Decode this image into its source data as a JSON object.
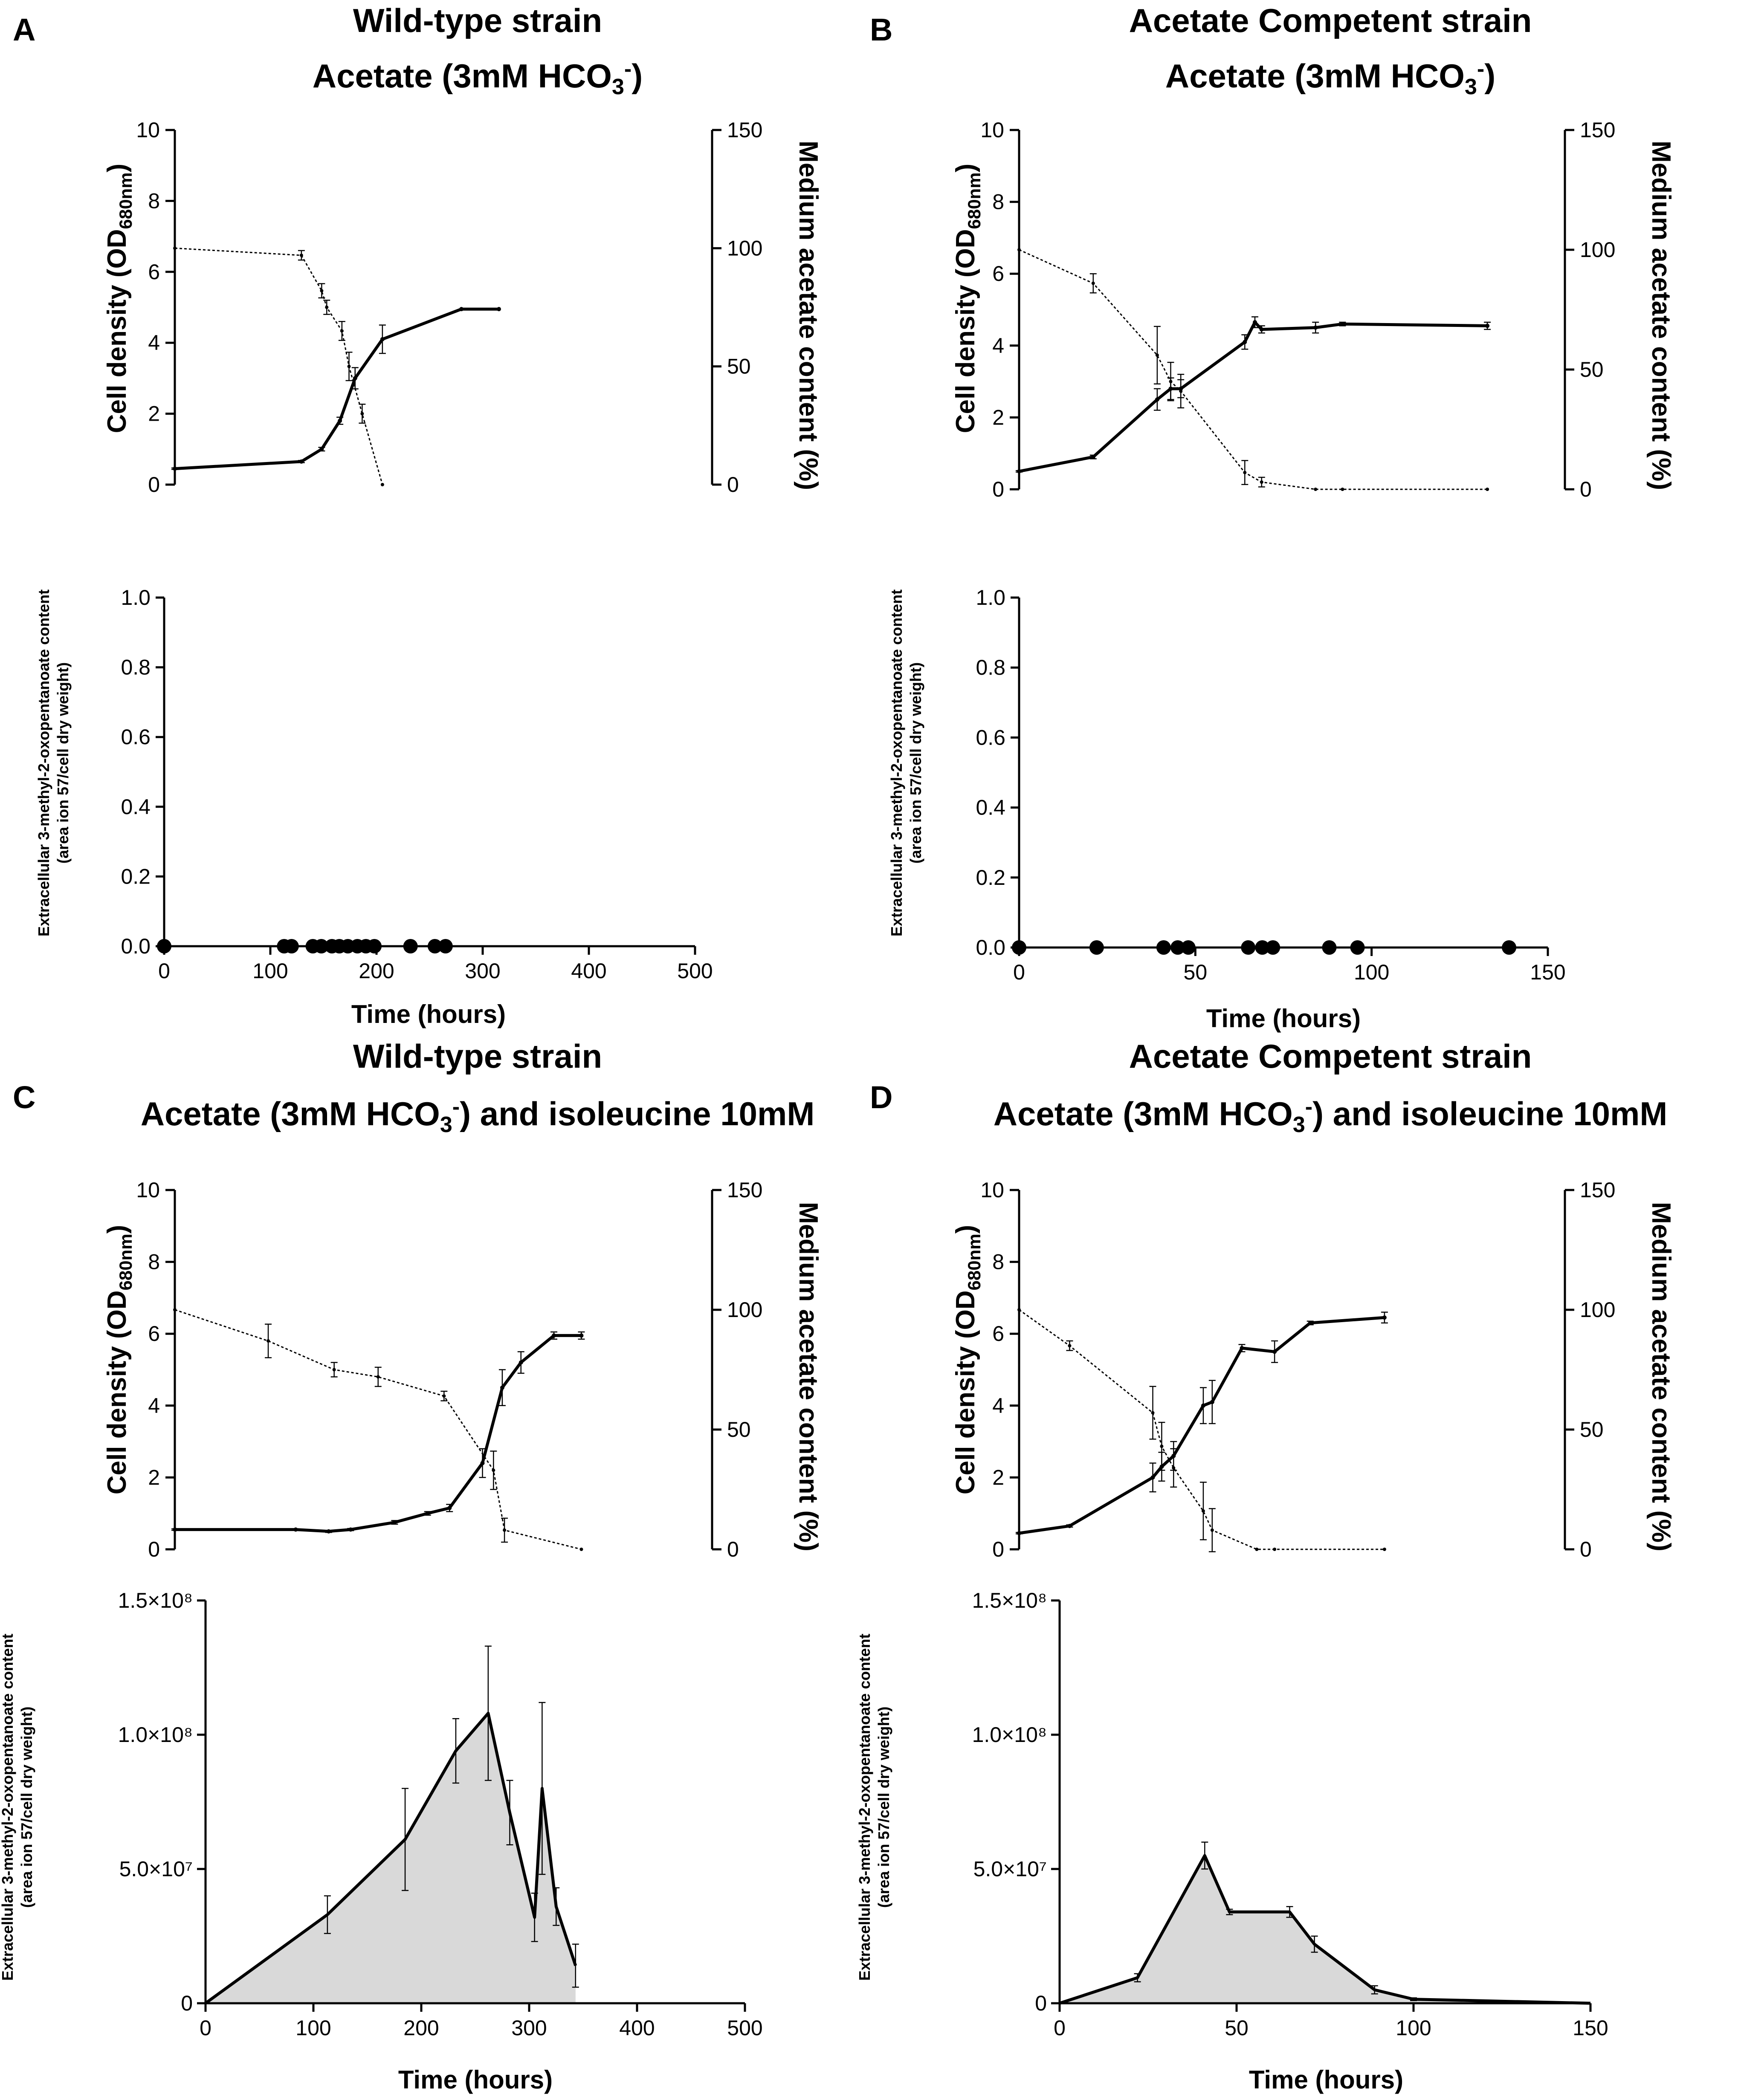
{
  "figure": {
    "panels": [
      {
        "letter": "A",
        "title_line1": "Wild-type strain",
        "title_line2": "Acetate (3mM HCO3-)"
      },
      {
        "letter": "B",
        "title_line1": "Acetate Competent strain",
        "title_line2": "Acetate (3mM HCO3-)"
      },
      {
        "letter": "C",
        "title_line1": "Wild-type strain",
        "title_line2": "Acetate (3mM HCO3-) and isoleucine 10mM"
      },
      {
        "letter": "D",
        "title_line1": "Acetate Competent strain",
        "title_line2": "Acetate (3mM HCO3-) and isoleucine 10mM"
      }
    ],
    "y_left_label": "Cell density (OD680nm)",
    "y_right_label": "Medium acetate content (%)",
    "y_metabolite_label_line1": "Extracellular 3-methyl-2-oxopentanoate content",
    "y_metabolite_label_line2": "(area ion 57/cell dry weight)",
    "x_label": "Time (hours)"
  },
  "chart_data": [
    {
      "id": "A-growth",
      "type": "line",
      "panel": "A",
      "xlim": [
        0,
        320
      ],
      "ylim_left": [
        0,
        10
      ],
      "ylim_right": [
        0,
        150
      ],
      "yticks_left": [
        0,
        2,
        4,
        6,
        8,
        10
      ],
      "yticks_right": [
        0,
        50,
        100,
        150
      ],
      "series": [
        {
          "name": "Cell density",
          "axis": "left",
          "style": "solid",
          "x": [
            0,
            125,
            145,
            163,
            178,
            205,
            283,
            320
          ],
          "y": [
            0.45,
            0.65,
            1.0,
            1.8,
            3.0,
            4.1,
            4.95,
            4.95
          ],
          "err": [
            0.02,
            0.03,
            0.05,
            0.1,
            0.3,
            0.4,
            0,
            0
          ]
        },
        {
          "name": "Medium acetate",
          "axis": "right",
          "style": "dotted",
          "x": [
            0,
            125,
            145,
            150,
            165,
            172,
            185,
            205
          ],
          "y": [
            100,
            97,
            82,
            75,
            65,
            50,
            30,
            0
          ],
          "err": [
            0,
            2,
            3,
            3,
            4,
            6,
            4,
            0
          ]
        }
      ]
    },
    {
      "id": "B-growth",
      "type": "line",
      "panel": "B",
      "xlim": [
        0,
        150
      ],
      "ylim_left": [
        0,
        10
      ],
      "ylim_right": [
        0,
        150
      ],
      "yticks_left": [
        0,
        2,
        4,
        6,
        8,
        10
      ],
      "yticks_right": [
        0,
        50,
        100,
        150
      ],
      "series": [
        {
          "name": "Cell density",
          "axis": "left",
          "style": "solid",
          "x": [
            0,
            22,
            41,
            45,
            48,
            67,
            70,
            72,
            88,
            96,
            139
          ],
          "y": [
            0.5,
            0.9,
            2.5,
            2.8,
            2.8,
            4.1,
            4.65,
            4.45,
            4.5,
            4.6,
            4.55
          ],
          "err": [
            0.02,
            0.05,
            0.3,
            0.3,
            0.25,
            0.2,
            0.15,
            0.1,
            0.15,
            0.05,
            0.1
          ]
        },
        {
          "name": "Medium acetate",
          "axis": "right",
          "style": "dotted",
          "x": [
            0,
            22,
            41,
            45,
            48,
            67,
            72,
            88,
            96,
            139
          ],
          "y": [
            100,
            86,
            56,
            45,
            41,
            7,
            3,
            0,
            0,
            0
          ],
          "err": [
            0,
            4,
            12,
            8,
            7,
            5,
            2,
            0,
            0,
            0
          ]
        }
      ]
    },
    {
      "id": "A-metabolite",
      "type": "scatter",
      "panel": "A",
      "xlim": [
        0,
        500
      ],
      "ylim": [
        0,
        1.0
      ],
      "yticks": [
        "0.0",
        "0.2",
        "0.4",
        "0.6",
        "0.8",
        "1.0"
      ],
      "xticks": [
        0,
        100,
        200,
        300,
        400,
        500
      ],
      "x": [
        0,
        113,
        120,
        140,
        148,
        158,
        165,
        173,
        182,
        190,
        198,
        232,
        255,
        265
      ],
      "y": [
        0,
        0,
        0,
        0,
        0,
        0,
        0,
        0,
        0,
        0,
        0,
        0,
        0,
        0
      ]
    },
    {
      "id": "B-metabolite",
      "type": "scatter",
      "panel": "B",
      "xlim": [
        0,
        150
      ],
      "ylim": [
        0,
        1.0
      ],
      "yticks": [
        "0.0",
        "0.2",
        "0.4",
        "0.6",
        "0.8",
        "1.0"
      ],
      "xticks": [
        0,
        50,
        100,
        150
      ],
      "x": [
        0,
        22,
        41,
        45,
        48,
        65,
        69,
        72,
        88,
        96,
        139
      ],
      "y": [
        0,
        0,
        0,
        0,
        0,
        0,
        0,
        0,
        0,
        0,
        0
      ]
    },
    {
      "id": "C-growth",
      "type": "line",
      "panel": "C",
      "xlim": [
        0,
        390
      ],
      "ylim_left": [
        0,
        10
      ],
      "ylim_right": [
        0,
        150
      ],
      "yticks_left": [
        0,
        2,
        4,
        6,
        8,
        10
      ],
      "yticks_right": [
        0,
        50,
        100,
        150
      ],
      "series": [
        {
          "name": "Cell density",
          "axis": "left",
          "style": "solid",
          "x": [
            0,
            110,
            140,
            160,
            200,
            230,
            250,
            280,
            298,
            315,
            345,
            370
          ],
          "y": [
            0.55,
            0.55,
            0.5,
            0.55,
            0.75,
            1.0,
            1.15,
            2.4,
            4.5,
            5.2,
            5.95,
            5.95
          ],
          "err": [
            0.02,
            0.02,
            0.03,
            0.03,
            0.05,
            0.05,
            0.1,
            0.4,
            0.5,
            0.3,
            0.1,
            0.1
          ]
        },
        {
          "name": "Medium acetate",
          "axis": "right",
          "style": "dotted",
          "x": [
            0,
            85,
            145,
            185,
            245,
            290,
            300,
            370
          ],
          "y": [
            100,
            87,
            75,
            72,
            64,
            33,
            8,
            0
          ],
          "err": [
            0,
            7,
            3,
            4,
            2,
            8,
            5,
            0
          ]
        }
      ]
    },
    {
      "id": "D-growth",
      "type": "line",
      "panel": "D",
      "xlim": [
        0,
        150
      ],
      "ylim_left": [
        0,
        10
      ],
      "ylim_right": [
        0,
        150
      ],
      "yticks_left": [
        0,
        2,
        4,
        6,
        8,
        10
      ],
      "yticks_right": [
        0,
        50,
        100,
        150
      ],
      "series": [
        {
          "name": "Cell density",
          "axis": "left",
          "style": "solid",
          "x": [
            0,
            17,
            45,
            48,
            52,
            62,
            65,
            75,
            86,
            98,
            123
          ],
          "y": [
            0.45,
            0.65,
            2.0,
            2.3,
            2.6,
            4.0,
            4.1,
            5.6,
            5.5,
            6.3,
            6.45
          ],
          "err": [
            0.02,
            0.03,
            0.4,
            0.4,
            0.4,
            0.5,
            0.6,
            0.1,
            0.3,
            0.05,
            0.15
          ]
        },
        {
          "name": "Medium acetate",
          "axis": "right",
          "style": "dotted",
          "x": [
            0,
            17,
            45,
            48,
            52,
            62,
            65,
            80,
            86,
            123
          ],
          "y": [
            100,
            85,
            57,
            43,
            34,
            16,
            8,
            0,
            0,
            0
          ],
          "err": [
            0,
            2,
            11,
            10,
            8,
            12,
            9,
            0,
            0,
            0
          ]
        }
      ]
    },
    {
      "id": "C-metabolite",
      "type": "area",
      "panel": "C",
      "xlim": [
        0,
        500
      ],
      "ylim": [
        0,
        150000000
      ],
      "ytick_labels": [
        "0",
        "5.0×10⁷",
        "1.0×10⁸",
        "1.5×10⁸"
      ],
      "ytick_values": [
        0,
        50000000,
        100000000,
        150000000
      ],
      "xticks": [
        0,
        100,
        200,
        300,
        400,
        500
      ],
      "x": [
        0,
        113,
        185,
        232,
        262,
        282,
        305,
        312,
        325,
        343
      ],
      "y": [
        0,
        33000000,
        61000000,
        94000000,
        108000000,
        71000000,
        32000000,
        80000000,
        36000000,
        14000000
      ],
      "err": [
        0,
        7000000,
        19000000,
        12000000,
        25000000,
        12000000,
        9000000,
        32000000,
        7000000,
        8000000
      ]
    },
    {
      "id": "D-metabolite",
      "type": "area",
      "panel": "D",
      "xlim": [
        0,
        150
      ],
      "ylim": [
        0,
        150000000
      ],
      "ytick_labels": [
        "0",
        "5.0×10⁷",
        "1.0×10⁸",
        "1.5×10⁸"
      ],
      "ytick_values": [
        0,
        50000000,
        100000000,
        150000000
      ],
      "xticks": [
        0,
        50,
        100,
        150
      ],
      "x": [
        0,
        22,
        41,
        48,
        65,
        72,
        89,
        100,
        150
      ],
      "y": [
        0,
        9500000,
        55000000,
        34000000,
        34000000,
        22000000,
        5000000,
        1500000,
        0
      ],
      "err": [
        0,
        1500000,
        5000000,
        1000000,
        2000000,
        3000000,
        1500000,
        500000,
        0
      ]
    }
  ]
}
